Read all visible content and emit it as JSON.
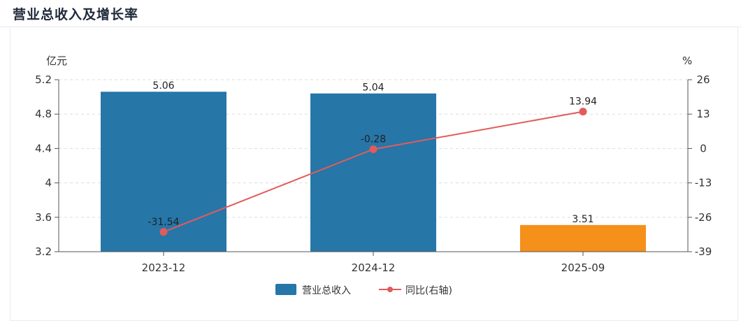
{
  "header": {
    "title": "营业总收入及增长率"
  },
  "chart_data": {
    "type": "bar",
    "categories": [
      "2023-12",
      "2024-12",
      "2025-09"
    ],
    "series": [
      {
        "name": "营业总收入",
        "kind": "bar",
        "axis": "left",
        "values": [
          5.06,
          5.04,
          3.51
        ],
        "colors": [
          "#2676a8",
          "#2676a8",
          "#f5901b"
        ]
      },
      {
        "name": "同比(右轴)",
        "kind": "line",
        "axis": "right",
        "values": [
          -31.54,
          -0.28,
          13.94
        ],
        "color": "#e35b5b"
      }
    ],
    "bar_labels": [
      "5.06",
      "5.04",
      "3.51"
    ],
    "line_labels": [
      "-31.54",
      "-0.28",
      "13.94"
    ],
    "y_left": {
      "unit": "亿元",
      "min": 3.2,
      "max": 5.2,
      "ticks": [
        3.2,
        3.6,
        4,
        4.4,
        4.8,
        5.2
      ],
      "tick_labels": [
        "3.2",
        "3.6",
        "4",
        "4.4",
        "4.8",
        "5.2"
      ]
    },
    "y_right": {
      "unit": "%",
      "min": -39,
      "max": 26,
      "ticks": [
        -39,
        -26,
        -13,
        0,
        13,
        26
      ],
      "tick_labels": [
        "-39",
        "-26",
        "-13",
        "0",
        "13",
        "26"
      ]
    },
    "grid": true,
    "legend_position": "bottom"
  }
}
